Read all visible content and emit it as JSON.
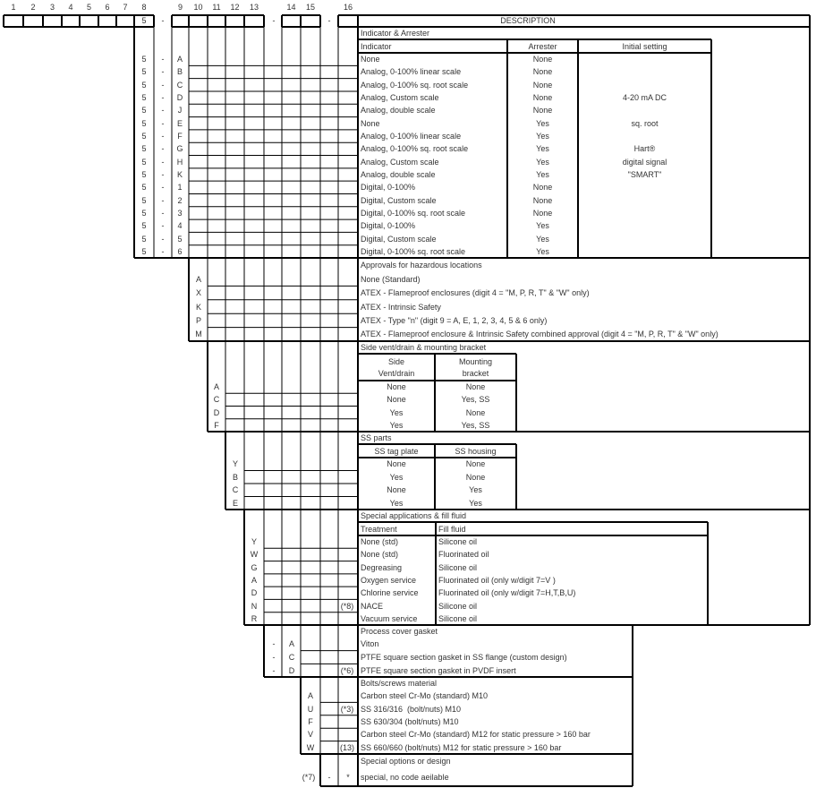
{
  "header": {
    "digits": [
      "1",
      "2",
      "3",
      "4",
      "5",
      "6",
      "7",
      "8",
      "9",
      "10",
      "11",
      "12",
      "13",
      "14",
      "15",
      "16"
    ],
    "digit_8_value": "5",
    "dash": "-",
    "description_label": "DESCRIPTION"
  },
  "sections": [
    {
      "title": "Indicator & Arrester",
      "columns": [
        "Indicator",
        "Arrester",
        "Initial setting"
      ],
      "rows": [
        {
          "prefix": [
            "5",
            "-",
            "A"
          ],
          "cells": [
            "None",
            "None",
            ""
          ]
        },
        {
          "prefix": [
            "5",
            "-",
            "B"
          ],
          "cells": [
            "Analog, 0-100% linear scale",
            "None",
            ""
          ]
        },
        {
          "prefix": [
            "5",
            "-",
            "C"
          ],
          "cells": [
            "Analog, 0-100% sq. root scale",
            "None",
            ""
          ]
        },
        {
          "prefix": [
            "5",
            "-",
            "D"
          ],
          "cells": [
            "Analog, Custom scale",
            "None",
            "4-20 mA DC"
          ]
        },
        {
          "prefix": [
            "5",
            "-",
            "J"
          ],
          "cells": [
            "Analog, double scale",
            "None",
            ""
          ]
        },
        {
          "prefix": [
            "5",
            "-",
            "E"
          ],
          "cells": [
            "None",
            "Yes",
            "sq. root"
          ]
        },
        {
          "prefix": [
            "5",
            "-",
            "F"
          ],
          "cells": [
            "Analog, 0-100% linear scale",
            "Yes",
            ""
          ]
        },
        {
          "prefix": [
            "5",
            "-",
            "G"
          ],
          "cells": [
            "Analog, 0-100% sq. root scale",
            "Yes",
            "Hart®"
          ]
        },
        {
          "prefix": [
            "5",
            "-",
            "H"
          ],
          "cells": [
            "Analog, Custom scale",
            "Yes",
            "digital signal"
          ]
        },
        {
          "prefix": [
            "5",
            "-",
            "K"
          ],
          "cells": [
            "Analog, double scale",
            "Yes",
            "\"SMART\""
          ]
        },
        {
          "prefix": [
            "5",
            "-",
            "1"
          ],
          "cells": [
            "Digital, 0-100%",
            "None",
            ""
          ]
        },
        {
          "prefix": [
            "5",
            "-",
            "2"
          ],
          "cells": [
            "Digital, Custom scale",
            "None",
            ""
          ]
        },
        {
          "prefix": [
            "5",
            "-",
            "3"
          ],
          "cells": [
            "Digital, 0-100% sq. root scale",
            "None",
            ""
          ]
        },
        {
          "prefix": [
            "5",
            "-",
            "4"
          ],
          "cells": [
            "Digital, 0-100%",
            "Yes",
            ""
          ]
        },
        {
          "prefix": [
            "5",
            "-",
            "5"
          ],
          "cells": [
            "Digital, Custom scale",
            "Yes",
            ""
          ]
        },
        {
          "prefix": [
            "5",
            "-",
            "6"
          ],
          "cells": [
            "Digital, 0-100% sq. root scale",
            "Yes",
            ""
          ]
        }
      ]
    },
    {
      "title": "Approvals for hazardous locations",
      "columns": [],
      "rows": [
        {
          "prefix": [
            "A"
          ],
          "cells": [
            "None (Standard)"
          ]
        },
        {
          "prefix": [
            "X"
          ],
          "cells": [
            "ATEX - Flameproof enclosures (digit 4 = \"M, P, R, T\" & \"W\" only)"
          ]
        },
        {
          "prefix": [
            "K"
          ],
          "cells": [
            "ATEX - Intrinsic Safety"
          ]
        },
        {
          "prefix": [
            "P"
          ],
          "cells": [
            "ATEX - Type \"n\" (digit 9 = A, E, 1, 2, 3, 4, 5 & 6 only)"
          ]
        },
        {
          "prefix": [
            "M"
          ],
          "cells": [
            "ATEX - Flameproof enclosure & Intrinsic Safety combined approval (digit 4 = \"M, P, R, T\" & \"W\" only)"
          ]
        }
      ]
    },
    {
      "title": "Side vent/drain & mounting bracket",
      "columns": [
        "Side\nVent/drain",
        "Mounting\nbracket"
      ],
      "rows": [
        {
          "prefix": [
            "A"
          ],
          "cells": [
            "None",
            "None"
          ]
        },
        {
          "prefix": [
            "C"
          ],
          "cells": [
            "None",
            "Yes, SS"
          ]
        },
        {
          "prefix": [
            "D"
          ],
          "cells": [
            "Yes",
            "None"
          ]
        },
        {
          "prefix": [
            "F"
          ],
          "cells": [
            "Yes",
            "Yes, SS"
          ]
        }
      ]
    },
    {
      "title": "SS parts",
      "columns": [
        "SS tag plate",
        "SS housing"
      ],
      "rows": [
        {
          "prefix": [
            "Y"
          ],
          "cells": [
            "None",
            "None"
          ]
        },
        {
          "prefix": [
            "B"
          ],
          "cells": [
            "Yes",
            "None"
          ]
        },
        {
          "prefix": [
            "C"
          ],
          "cells": [
            "None",
            "Yes"
          ]
        },
        {
          "prefix": [
            "E"
          ],
          "cells": [
            "Yes",
            "Yes"
          ]
        }
      ]
    },
    {
      "title": "Special applications & fill fluid",
      "columns": [
        "Treatment",
        "Fill fluid"
      ],
      "rows": [
        {
          "prefix": [
            "Y"
          ],
          "cells": [
            "None (std)",
            "Silicone oil"
          ]
        },
        {
          "prefix": [
            "W"
          ],
          "cells": [
            "None (std)",
            "Fluorinated oil"
          ]
        },
        {
          "prefix": [
            "G"
          ],
          "cells": [
            "Degreasing",
            "Silicone oil"
          ]
        },
        {
          "prefix": [
            "A"
          ],
          "cells": [
            "Oxygen service",
            "Fluorinated oil (only w/digit 7=V )"
          ]
        },
        {
          "prefix": [
            "D"
          ],
          "cells": [
            "Chlorine service",
            "Fluorinated oil (only w/digit 7=H,T,B,U)"
          ]
        },
        {
          "prefix": [
            "N"
          ],
          "cells": [
            "NACE",
            "Silicone oil"
          ],
          "note": "(*8)"
        },
        {
          "prefix": [
            "R"
          ],
          "cells": [
            "Vacuum service",
            "Silicone oil"
          ]
        }
      ]
    },
    {
      "title": "Process cover gasket",
      "columns": [],
      "rows": [
        {
          "prefix": [
            "-",
            "A"
          ],
          "cells": [
            "Viton"
          ]
        },
        {
          "prefix": [
            "-",
            "C"
          ],
          "cells": [
            "PTFE square section gasket in SS flange (custom design)"
          ]
        },
        {
          "prefix": [
            "-",
            "D"
          ],
          "cells": [
            "PTFE square section gasket in PVDF insert"
          ],
          "note": "(*6)"
        }
      ]
    },
    {
      "title": "Bolts/screws material",
      "columns": [],
      "rows": [
        {
          "prefix": [
            "A"
          ],
          "cells": [
            "Carbon steel Cr-Mo (standard) M10"
          ]
        },
        {
          "prefix": [
            "U"
          ],
          "cells": [
            "SS 316/316  (bolt/nuts) M10"
          ],
          "note": "(*3)"
        },
        {
          "prefix": [
            "F"
          ],
          "cells": [
            "SS 630/304 (bolt/nuts) M10"
          ]
        },
        {
          "prefix": [
            "V"
          ],
          "cells": [
            "Carbon steel Cr-Mo (standard) M12 for static pressure > 160 bar"
          ]
        },
        {
          "prefix": [
            "W"
          ],
          "cells": [
            "SS 660/660 (bolt/nuts) M12 for static pressure > 160 bar"
          ],
          "note": "(13)"
        }
      ]
    },
    {
      "title": "Special options or design",
      "columns": [],
      "rows": [
        {
          "prefix": [
            "(*7)",
            "-",
            "*"
          ],
          "cells": [
            "special, no code aeilable"
          ]
        }
      ]
    }
  ]
}
